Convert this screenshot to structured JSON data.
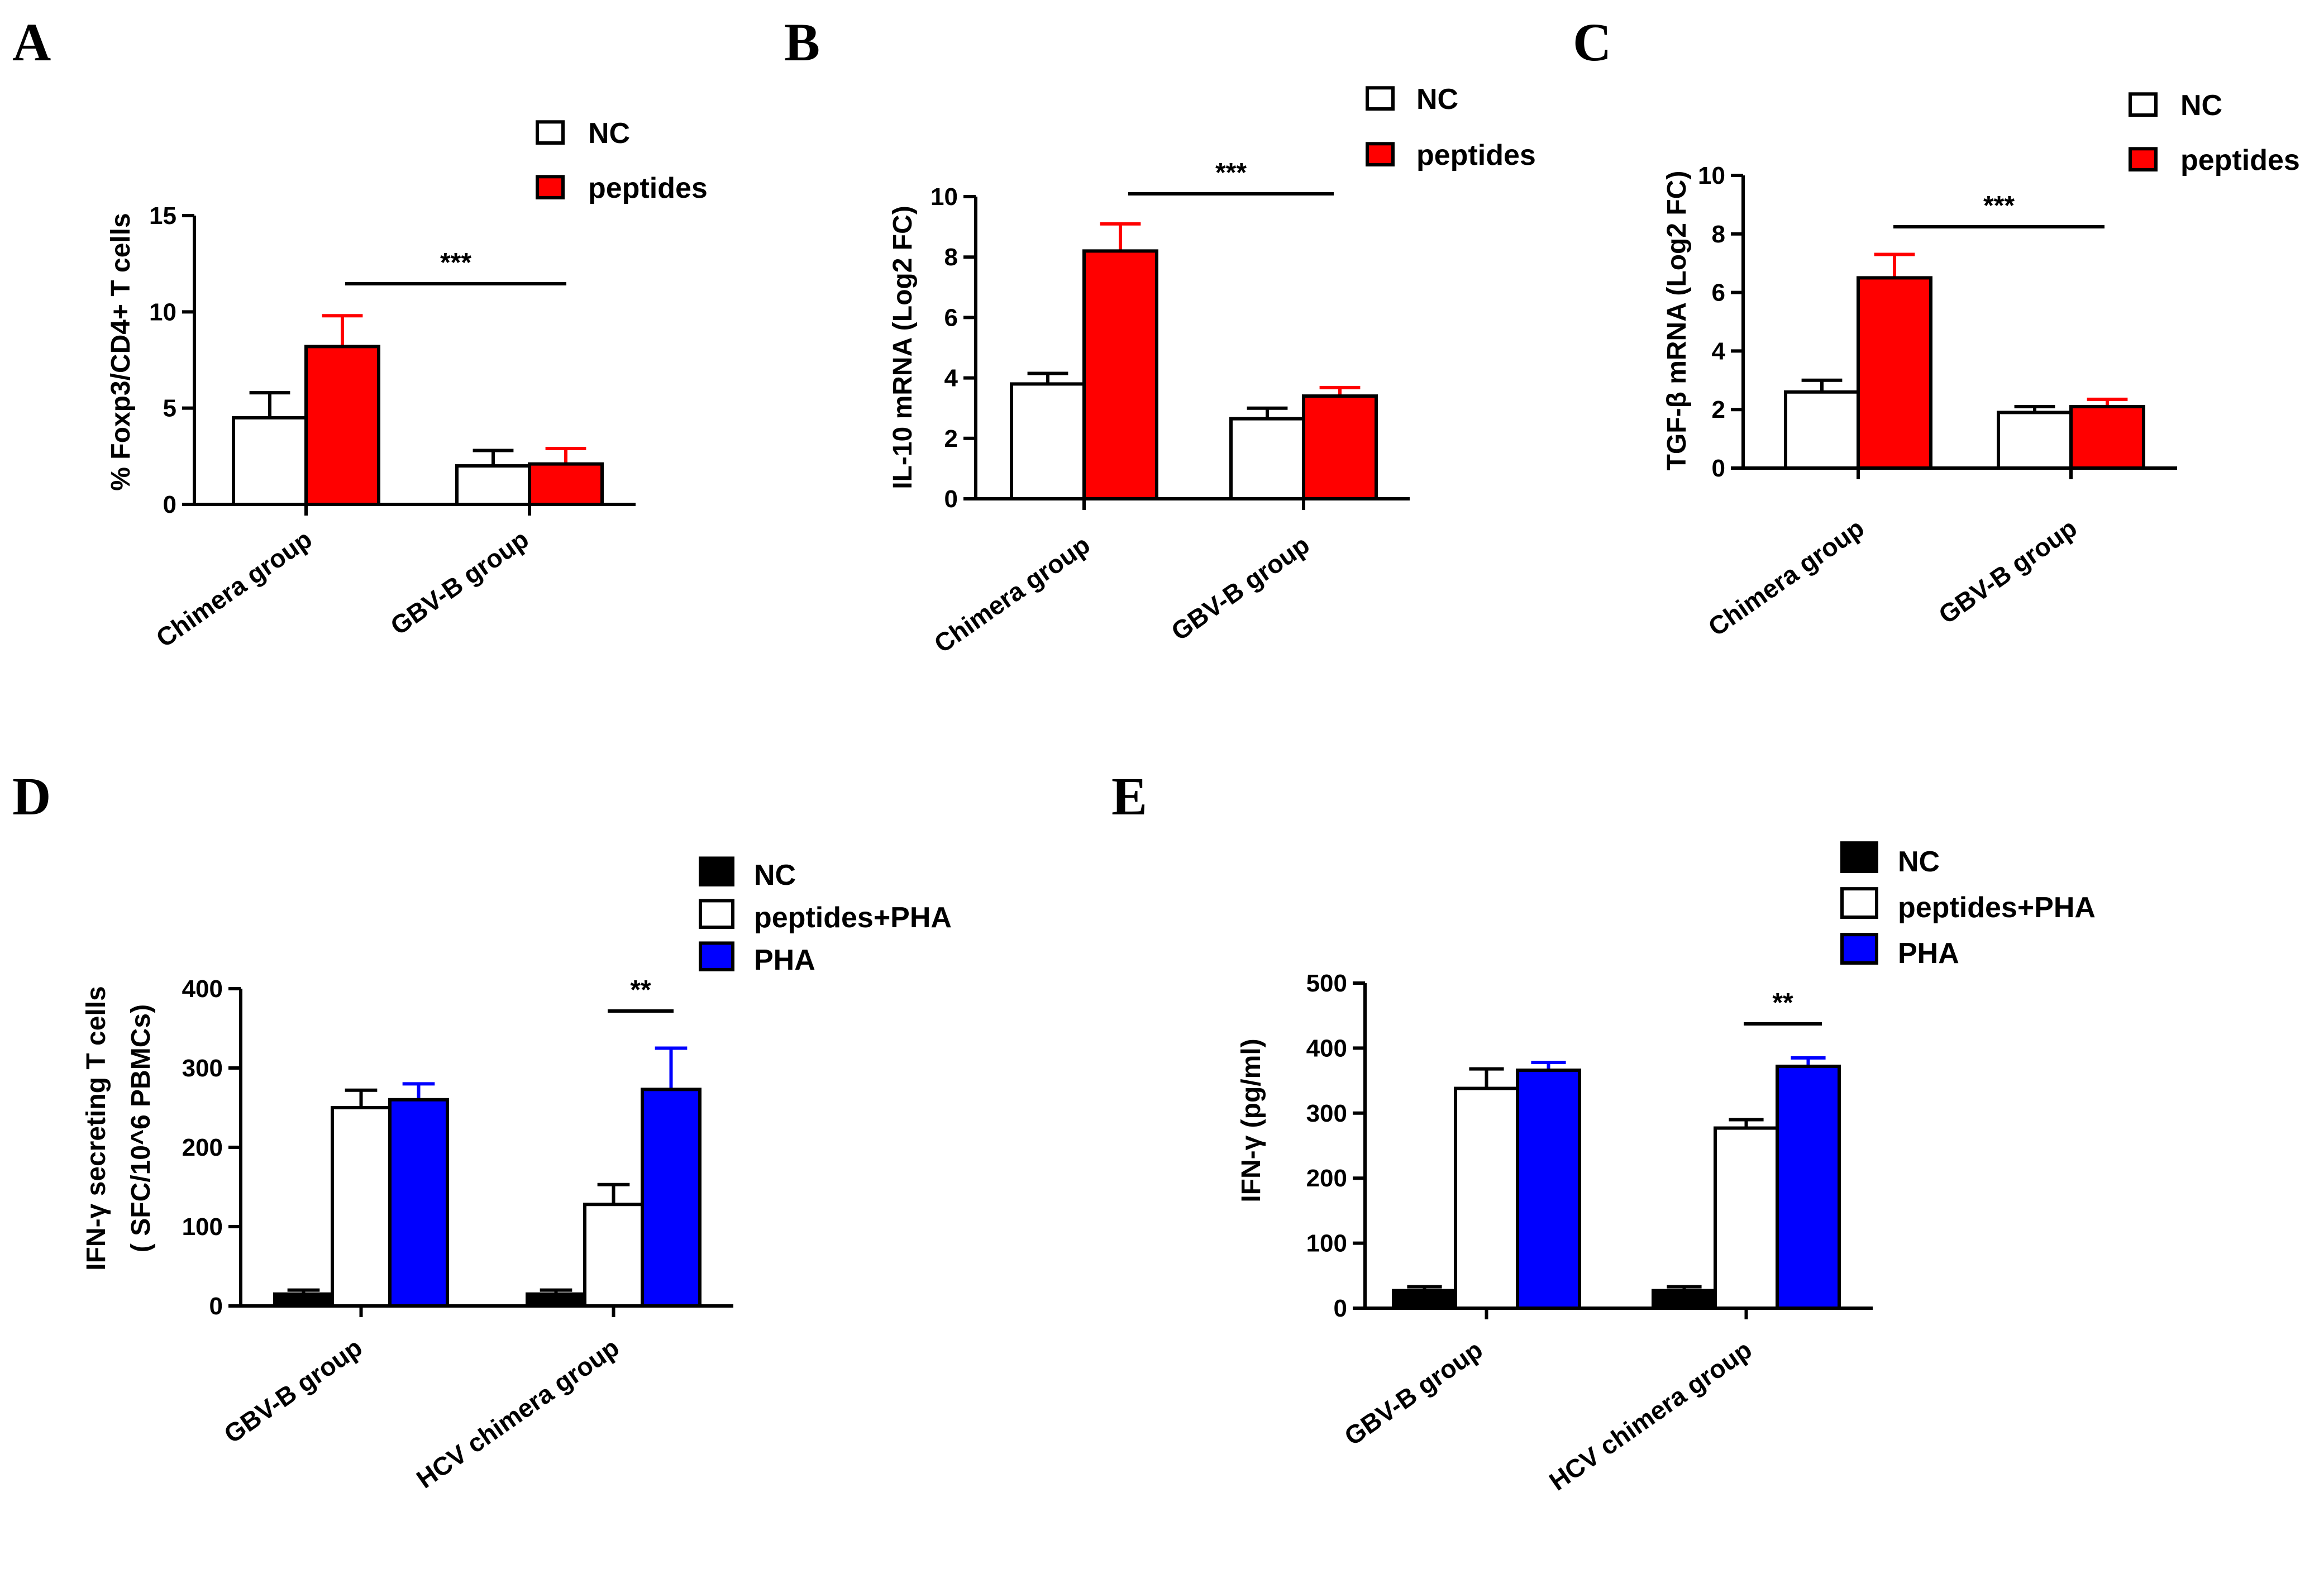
{
  "figure": {
    "panel_letters": [
      "A",
      "B",
      "C",
      "D",
      "E"
    ]
  },
  "colors": {
    "nc_white": "#ffffff",
    "nc_black": "#000000",
    "red": "#ff0000",
    "blue": "#0000ff",
    "stroke": "#000000"
  },
  "chart_data": [
    {
      "panel": "A",
      "type": "bar",
      "ylabel": "% Foxp3/CD4+ T cells",
      "ylim": [
        0,
        15
      ],
      "yticks": [
        0,
        5,
        10,
        15
      ],
      "categories": [
        "Chimera group",
        "GBV-B group"
      ],
      "series": [
        {
          "name": "NC",
          "color": "#ffffff",
          "values": [
            4.5,
            2.0
          ],
          "errors": [
            1.3,
            0.8
          ]
        },
        {
          "name": "peptides",
          "color": "#ff0000",
          "values": [
            8.2,
            2.1
          ],
          "errors": [
            1.6,
            0.8
          ]
        }
      ],
      "significance": {
        "label": "***",
        "from_category": 0,
        "to_category": 1
      },
      "legend": "top-right",
      "grid": false
    },
    {
      "panel": "B",
      "type": "bar",
      "ylabel": "IL-10 mRNA (Log2 FC)",
      "ylim": [
        0,
        10
      ],
      "yticks": [
        0,
        2,
        4,
        6,
        8,
        10
      ],
      "categories": [
        "Chimera group",
        "GBV-B group"
      ],
      "series": [
        {
          "name": "NC",
          "color": "#ffffff",
          "values": [
            3.8,
            2.65
          ],
          "errors": [
            0.35,
            0.35
          ]
        },
        {
          "name": "peptides",
          "color": "#ff0000",
          "values": [
            8.2,
            3.4
          ],
          "errors": [
            0.9,
            0.28
          ]
        }
      ],
      "significance": {
        "label": "***",
        "from_category": 0,
        "to_category": 1
      },
      "legend": "top-right",
      "grid": false
    },
    {
      "panel": "C",
      "type": "bar",
      "ylabel": "TGF-β mRNA (Log2 FC)",
      "ylim": [
        0,
        10
      ],
      "yticks": [
        0,
        2,
        4,
        6,
        8,
        10
      ],
      "categories": [
        "Chimera group",
        "GBV-B group"
      ],
      "series": [
        {
          "name": "NC",
          "color": "#ffffff",
          "values": [
            2.6,
            1.9
          ],
          "errors": [
            0.4,
            0.2
          ]
        },
        {
          "name": "peptides",
          "color": "#ff0000",
          "values": [
            6.5,
            2.1
          ],
          "errors": [
            0.8,
            0.25
          ]
        }
      ],
      "significance": {
        "label": "***",
        "from_category": 0,
        "to_category": 1
      },
      "legend": "top-right",
      "grid": false
    },
    {
      "panel": "D",
      "type": "bar",
      "ylabel": "IFN-γ secreting T cells",
      "ylabel2": "( SFC/10^6 PBMCs)",
      "ylim": [
        0,
        400
      ],
      "yticks": [
        0,
        100,
        200,
        300,
        400
      ],
      "categories": [
        "GBV-B group",
        "HCV chimera group"
      ],
      "series": [
        {
          "name": "NC",
          "color": "#000000",
          "values": [
            15,
            15
          ],
          "errors": [
            5,
            5
          ]
        },
        {
          "name": "peptides+PHA",
          "color": "#ffffff",
          "values": [
            250,
            128
          ],
          "errors": [
            22,
            25
          ]
        },
        {
          "name": "PHA",
          "color": "#0000ff",
          "values": [
            260,
            273
          ],
          "errors": [
            20,
            52
          ]
        }
      ],
      "significance": {
        "label": "**",
        "category": 1,
        "from_series": 1,
        "to_series": 2
      },
      "legend": "top-right",
      "grid": false
    },
    {
      "panel": "E",
      "type": "bar",
      "ylabel": "IFN-γ (pg/ml)",
      "ylim": [
        0,
        500
      ],
      "yticks": [
        0,
        100,
        200,
        300,
        400,
        500
      ],
      "categories": [
        "GBV-B group",
        "HCV chimera group"
      ],
      "series": [
        {
          "name": "NC",
          "color": "#000000",
          "values": [
            27,
            27
          ],
          "errors": [
            6,
            6
          ]
        },
        {
          "name": "peptides+PHA",
          "color": "#ffffff",
          "values": [
            338,
            277
          ],
          "errors": [
            30,
            13
          ]
        },
        {
          "name": "PHA",
          "color": "#0000ff",
          "values": [
            366,
            372
          ],
          "errors": [
            12,
            13
          ]
        }
      ],
      "significance": {
        "label": "**",
        "category": 1,
        "from_series": 1,
        "to_series": 2
      },
      "legend": "top-right",
      "grid": false
    }
  ]
}
